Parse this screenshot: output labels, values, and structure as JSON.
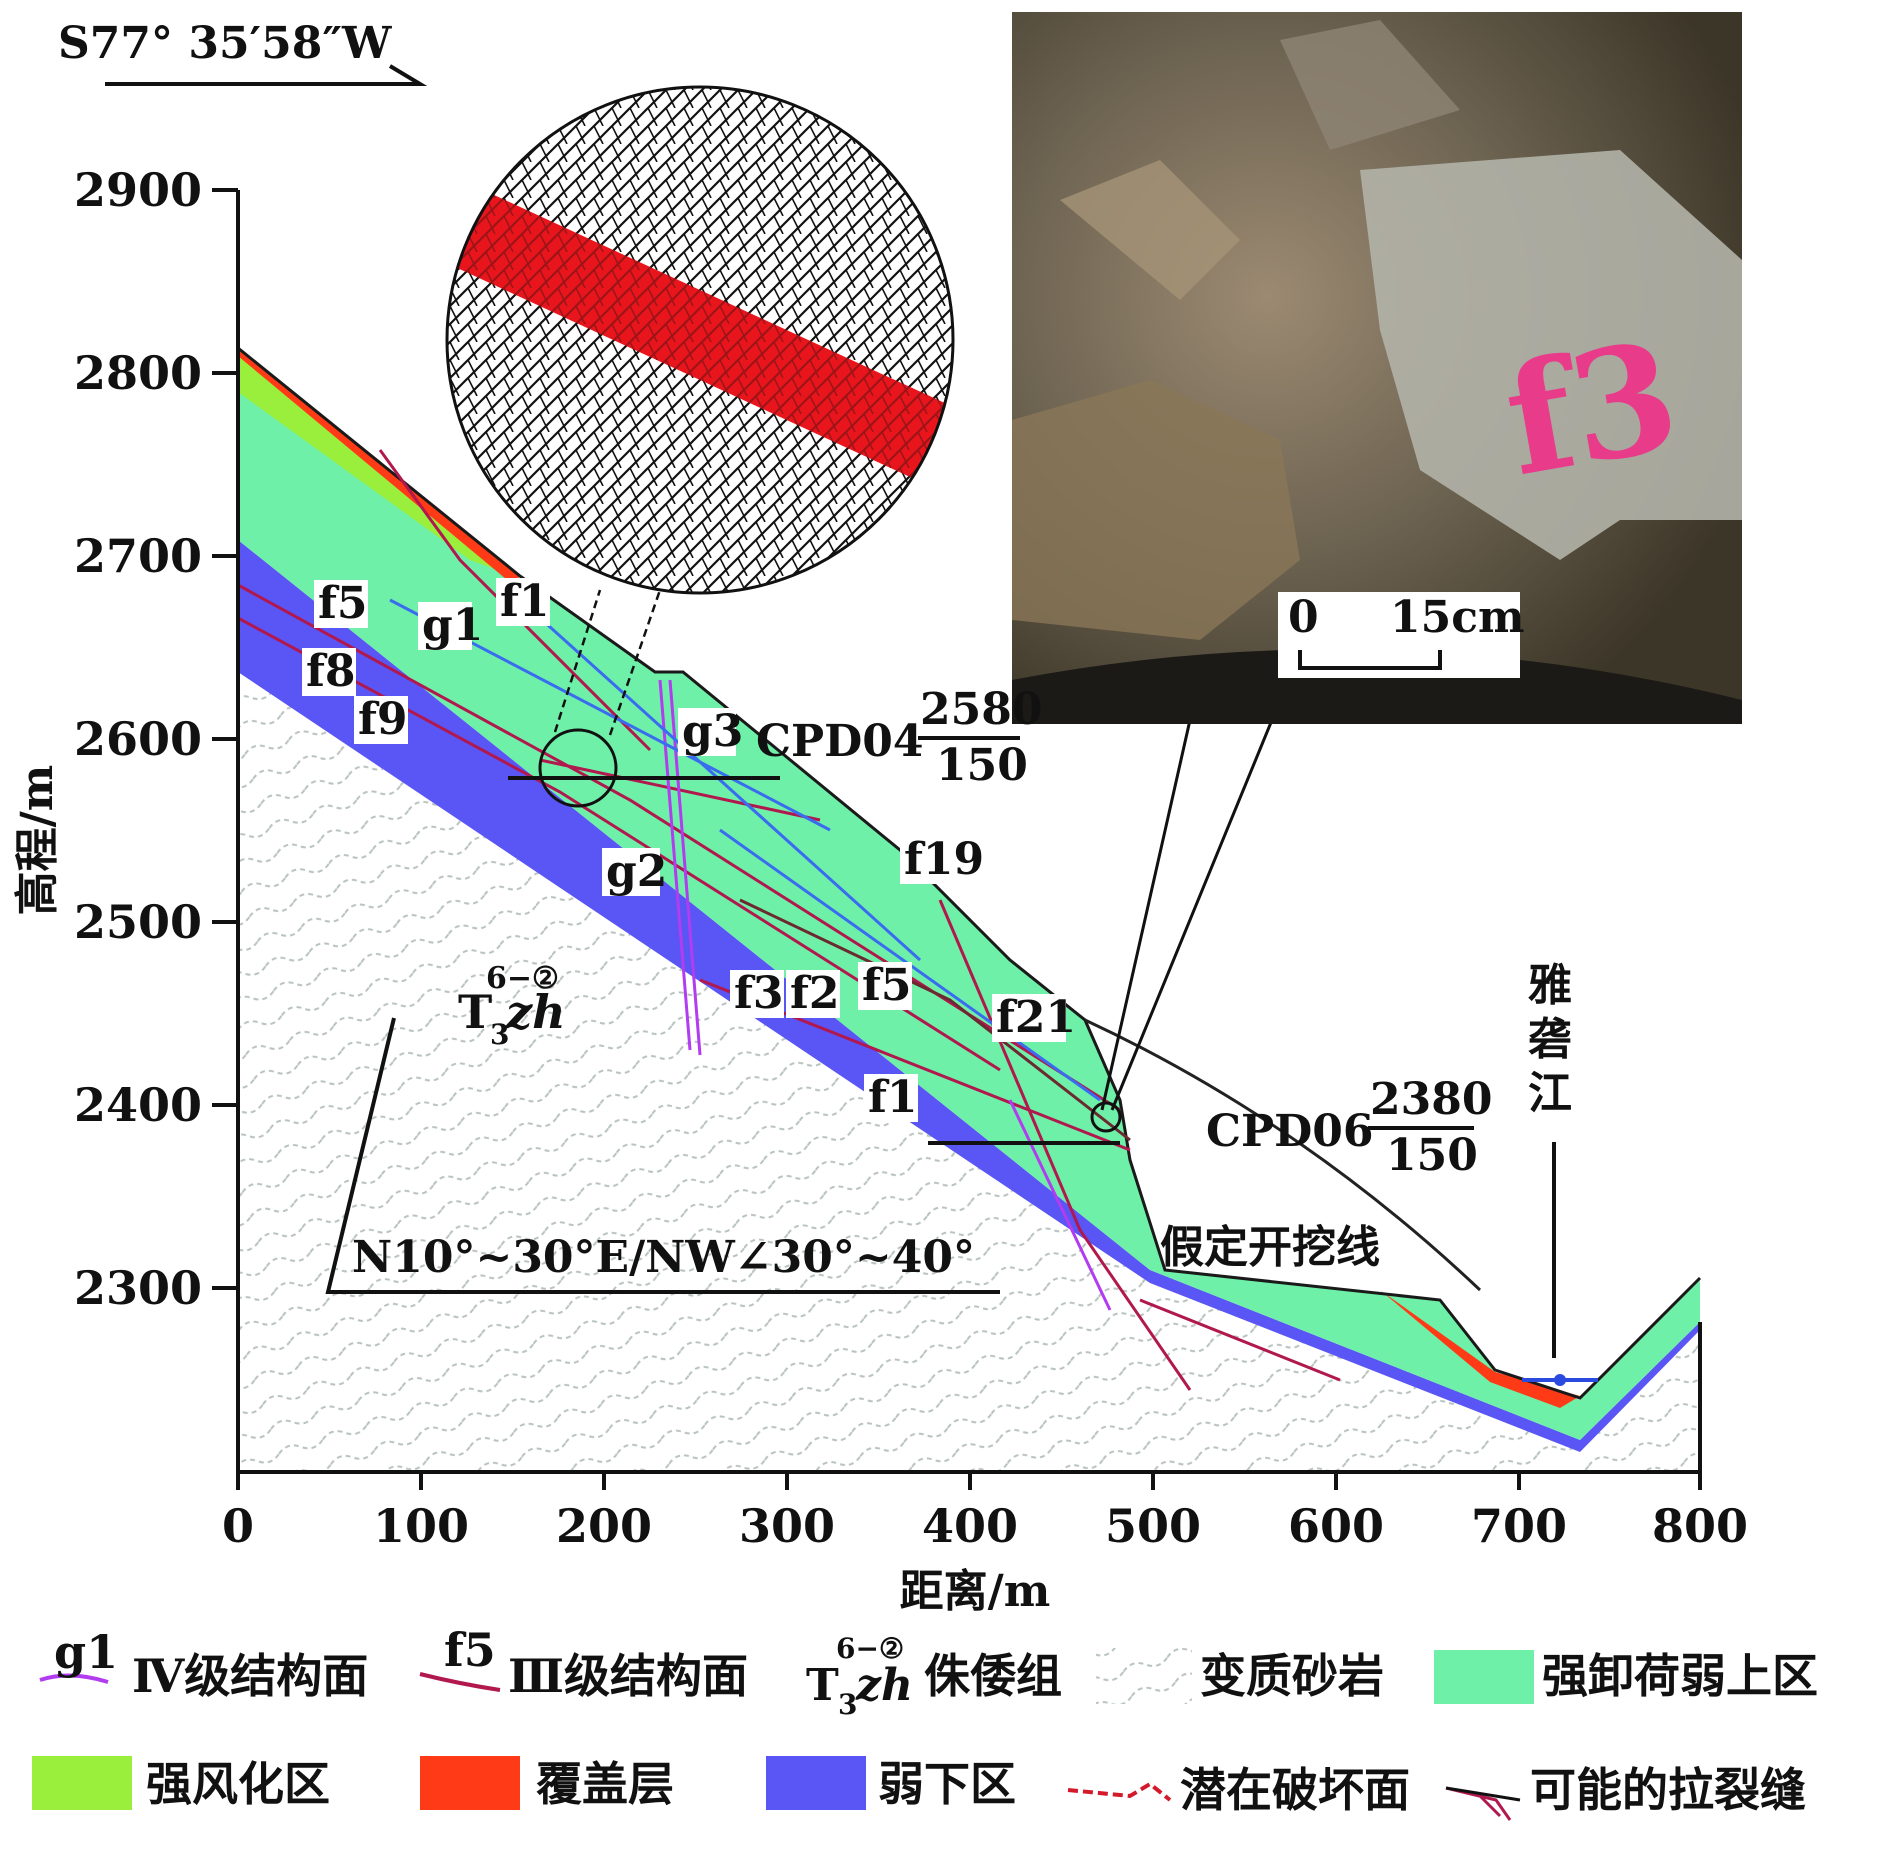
{
  "direction": "S77° 35′58″W",
  "y_axis": {
    "label": "高程/m",
    "ticks": [
      "2900",
      "2800",
      "2700",
      "2600",
      "2500",
      "2400",
      "2300"
    ]
  },
  "x_axis": {
    "label": "距离/m",
    "ticks": [
      "0",
      "100",
      "200",
      "300",
      "400",
      "500",
      "600",
      "700",
      "800"
    ]
  },
  "feature_labels": {
    "f5_a": "f5",
    "g1": "g1",
    "f1_a": "f1",
    "f8": "f8",
    "f9": "f9",
    "g3": "g3",
    "g2": "g2",
    "f19": "f19",
    "f3": "f3",
    "f2": "f2",
    "f5_b": "f5",
    "f21": "f21",
    "f1_b": "f1"
  },
  "formation": {
    "base": "T",
    "sub": "3",
    "sup": "6−②",
    "italic": "zh"
  },
  "attitude": "N10°~30°E/NW∠30°~40°",
  "adits": [
    {
      "name": "CPD04",
      "elev": "2580",
      "len": "150"
    },
    {
      "name": "CPD06",
      "elev": "2380",
      "len": "150"
    }
  ],
  "excavation_line": "假定开挖线",
  "river": "雅砻江",
  "river_chars": [
    "雅",
    "砻",
    "江"
  ],
  "photo_scale": {
    "zero": "0",
    "length": "15cm"
  },
  "photo_marking": "f3",
  "legend": [
    {
      "sym": "g1",
      "text": "Ⅳ级结构面"
    },
    {
      "sym": "f5",
      "text": "Ⅲ级结构面"
    },
    {
      "text": "侏倭组"
    },
    {
      "text": "变质砂岩"
    },
    {
      "text": "强卸荷弱上区",
      "color": "#6ef0a8"
    },
    {
      "text": "强风化区",
      "color": "#9aee3c"
    },
    {
      "text": "覆盖层",
      "color": "#ff3a16"
    },
    {
      "text": "弱下区",
      "color": "#5a55f5"
    },
    {
      "text": "潜在破坏面"
    },
    {
      "text": "可能的拉裂缝"
    }
  ],
  "colors": {
    "unloading": "#6ef0a8",
    "weathered": "#9aee3c",
    "overburden": "#ff3a16",
    "weak_lower": "#5a55f5",
    "class4": "#b23cf0",
    "class3": "#b0184e",
    "blue_joint": "#3a6cf0"
  }
}
